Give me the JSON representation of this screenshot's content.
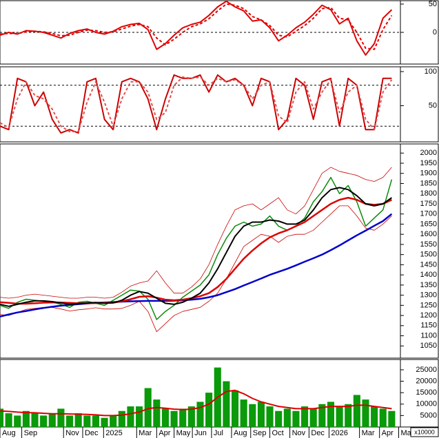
{
  "chart_data": {
    "type": "stock",
    "x": [
      0,
      1,
      2,
      3,
      4,
      5,
      6,
      7,
      8,
      9,
      10,
      11,
      12,
      13,
      14,
      15,
      16,
      17,
      18,
      19,
      20,
      21,
      22,
      23,
      24,
      25,
      26,
      27,
      28,
      29,
      30,
      31,
      32,
      33,
      34,
      35,
      36,
      37,
      38,
      39,
      40,
      41,
      42,
      43,
      44,
      45
    ],
    "xlim": [
      0,
      46
    ],
    "xticks": [
      {
        "value": 0,
        "label": "Aug"
      },
      {
        "value": 2.5,
        "label": "Sep"
      },
      {
        "value": 7.3,
        "label": "Nov"
      },
      {
        "value": 9.5,
        "label": "Dec"
      },
      {
        "value": 11.9,
        "label": "2025"
      },
      {
        "value": 15.7,
        "label": "Mar"
      },
      {
        "value": 18,
        "label": "Apr"
      },
      {
        "value": 20,
        "label": "May"
      },
      {
        "value": 22.1,
        "label": "Jun"
      },
      {
        "value": 24.3,
        "label": "Jul"
      },
      {
        "value": 26.6,
        "label": "Aug"
      },
      {
        "value": 28.8,
        "label": "Sep"
      },
      {
        "value": 31,
        "label": "Oct"
      },
      {
        "value": 33.3,
        "label": "Nov"
      },
      {
        "value": 35.5,
        "label": "Dec"
      },
      {
        "value": 37.8,
        "label": "2026"
      },
      {
        "value": 41.3,
        "label": "Mar"
      },
      {
        "value": 43.6,
        "label": "Apr"
      },
      {
        "value": 45.8,
        "label": "Ma"
      }
    ],
    "panels": [
      {
        "type": "line",
        "ylim": [
          -56,
          56
        ],
        "yticks": [
          0,
          50
        ],
        "levels": [
          0
        ],
        "series": [
          {
            "color": "#e00000",
            "values": [
              -5,
              0,
              -3,
              3,
              2,
              0,
              -5,
              -10,
              -2,
              3,
              6,
              0,
              -3,
              2,
              10,
              14,
              16,
              5,
              -30,
              -20,
              -5,
              8,
              14,
              18,
              30,
              45,
              55,
              45,
              38,
              20,
              22,
              8,
              -15,
              -5,
              8,
              18,
              32,
              48,
              40,
              15,
              25,
              -15,
              -40,
              -20,
              25,
              40
            ]
          },
          {
            "color": "#e00000",
            "dash": true,
            "values": [
              -3,
              -2,
              -2,
              1,
              2,
              1,
              -2,
              -6,
              -5,
              0,
              4,
              3,
              0,
              1,
              6,
              11,
              14,
              10,
              -10,
              -22,
              -12,
              0,
              10,
              15,
              24,
              38,
              50,
              48,
              42,
              28,
              22,
              12,
              -5,
              -8,
              2,
              12,
              25,
              42,
              44,
              25,
              22,
              0,
              -28,
              -30,
              5,
              30
            ]
          }
        ]
      },
      {
        "type": "line",
        "ylim": [
          -3,
          107
        ],
        "yticks": [
          50,
          100
        ],
        "levels": [
          20,
          80
        ],
        "series": [
          {
            "color": "#cc0000",
            "values": [
              20,
              15,
              90,
              85,
              50,
              70,
              30,
              10,
              15,
              10,
              85,
              90,
              30,
              15,
              85,
              90,
              85,
              60,
              15,
              60,
              95,
              90,
              90,
              95,
              70,
              95,
              85,
              90,
              80,
              50,
              90,
              85,
              15,
              30,
              90,
              80,
              30,
              85,
              90,
              20,
              90,
              80,
              15,
              15,
              90,
              90
            ]
          },
          {
            "color": "#e05050",
            "dash": true,
            "values": [
              25,
              18,
              60,
              85,
              65,
              60,
              45,
              20,
              12,
              12,
              55,
              85,
              55,
              20,
              60,
              85,
              85,
              70,
              30,
              40,
              80,
              92,
              90,
              92,
              80,
              90,
              85,
              88,
              80,
              60,
              80,
              85,
              35,
              25,
              70,
              85,
              45,
              70,
              88,
              40,
              70,
              80,
              30,
              15,
              70,
              88
            ]
          }
        ]
      },
      {
        "type": "line",
        "ylim": [
          990,
          2045
        ],
        "yticks": [
          1050,
          1100,
          1150,
          1200,
          1250,
          1300,
          1350,
          1400,
          1450,
          1500,
          1550,
          1600,
          1650,
          1700,
          1750,
          1800,
          1850,
          1900,
          1950,
          2000
        ],
        "levels": [],
        "series": [
          {
            "color": "#cc0000",
            "width": 0.8,
            "values": [
              1290,
              1285,
              1290,
              1300,
              1305,
              1300,
              1295,
              1290,
              1285,
              1285,
              1290,
              1290,
              1285,
              1290,
              1315,
              1345,
              1360,
              1370,
              1420,
              1360,
              1310,
              1310,
              1340,
              1380,
              1450,
              1550,
              1640,
              1720,
              1740,
              1750,
              1720,
              1750,
              1780,
              1720,
              1700,
              1740,
              1820,
              1900,
              1930,
              1910,
              1900,
              1890,
              1870,
              1860,
              1880,
              1930
            ]
          },
          {
            "color": "#cc0000",
            "width": 0.8,
            "values": [
              1205,
              1200,
              1215,
              1230,
              1235,
              1240,
              1240,
              1232,
              1222,
              1228,
              1232,
              1238,
              1232,
              1232,
              1235,
              1250,
              1270,
              1220,
              1120,
              1160,
              1200,
              1220,
              1230,
              1240,
              1270,
              1310,
              1380,
              1460,
              1540,
              1570,
              1600,
              1590,
              1560,
              1590,
              1600,
              1600,
              1620,
              1660,
              1700,
              1740,
              1740,
              1690,
              1630,
              1620,
              1650,
              1690
            ]
          },
          {
            "color": "#0a8a0a",
            "width": 1.5,
            "values": [
              1250,
              1235,
              1265,
              1280,
              1275,
              1270,
              1265,
              1255,
              1240,
              1265,
              1270,
              1260,
              1250,
              1275,
              1300,
              1325,
              1320,
              1280,
              1180,
              1220,
              1250,
              1290,
              1320,
              1350,
              1400,
              1500,
              1580,
              1640,
              1660,
              1640,
              1650,
              1690,
              1640,
              1620,
              1640,
              1680,
              1760,
              1810,
              1880,
              1800,
              1840,
              1760,
              1640,
              1680,
              1720,
              1870
            ]
          },
          {
            "color": "#0000cc",
            "width": 2.5,
            "values": [
              1195,
              1205,
              1215,
              1222,
              1230,
              1237,
              1243,
              1248,
              1252,
              1256,
              1259,
              1262,
              1264,
              1266,
              1268,
              1270,
              1271,
              1272,
              1272,
              1272,
              1273,
              1275,
              1278,
              1282,
              1290,
              1300,
              1315,
              1330,
              1348,
              1365,
              1382,
              1400,
              1415,
              1430,
              1447,
              1465,
              1482,
              1500,
              1522,
              1545,
              1570,
              1595,
              1618,
              1642,
              1665,
              1700
            ]
          },
          {
            "color": "#dd0000",
            "width": 2.5,
            "values": [
              1265,
              1262,
              1258,
              1258,
              1260,
              1263,
              1264,
              1264,
              1262,
              1260,
              1260,
              1261,
              1262,
              1263,
              1270,
              1280,
              1292,
              1295,
              1288,
              1278,
              1275,
              1278,
              1285,
              1295,
              1310,
              1340,
              1380,
              1430,
              1480,
              1520,
              1555,
              1585,
              1605,
              1620,
              1640,
              1660,
              1690,
              1720,
              1750,
              1770,
              1780,
              1770,
              1750,
              1745,
              1750,
              1770
            ]
          },
          {
            "color": "#000000",
            "width": 2,
            "values": [
              1255,
              1245,
              1255,
              1265,
              1272,
              1272,
              1268,
              1262,
              1255,
              1258,
              1262,
              1264,
              1260,
              1262,
              1275,
              1300,
              1318,
              1310,
              1285,
              1260,
              1255,
              1265,
              1285,
              1310,
              1360,
              1430,
              1510,
              1590,
              1640,
              1660,
              1660,
              1670,
              1665,
              1650,
              1650,
              1670,
              1720,
              1780,
              1820,
              1830,
              1820,
              1790,
              1750,
              1740,
              1750,
              1780
            ]
          }
        ]
      },
      {
        "type": "bar",
        "ylim": [
          0,
          29500
        ],
        "yticks": [
          5000,
          10000,
          15000,
          20000,
          25000
        ],
        "levels": [],
        "unit_label": "x10000",
        "series": [
          {
            "type": "bar",
            "color": "#0a9a0a",
            "values": [
              8000,
              6000,
              5000,
              7000,
              6000,
              5000,
              6000,
              8000,
              5000,
              6000,
              5000,
              5000,
              4000,
              5000,
              7000,
              9000,
              9000,
              17000,
              12000,
              8000,
              7000,
              8000,
              9000,
              11000,
              15000,
              26000,
              20000,
              16000,
              12000,
              10000,
              11000,
              9000,
              7000,
              8000,
              7000,
              9000,
              8000,
              10000,
              11000,
              9000,
              10000,
              14000,
              12000,
              9000,
              8000,
              7000
            ]
          },
          {
            "type": "line",
            "color": "#dd0000",
            "width": 2,
            "values": [
              7000,
              6800,
              6500,
              6300,
              6200,
              6000,
              5800,
              5800,
              5700,
              5600,
              5500,
              5300,
              5000,
              5000,
              5200,
              5800,
              6500,
              8000,
              8500,
              8200,
              7800,
              7600,
              7800,
              8500,
              10000,
              13000,
              15500,
              16000,
              14500,
              12500,
              11000,
              10000,
              9000,
              8500,
              8000,
              8000,
              8000,
              8500,
              9000,
              9000,
              9000,
              9500,
              9500,
              9000,
              8500,
              8000
            ]
          }
        ]
      }
    ]
  }
}
